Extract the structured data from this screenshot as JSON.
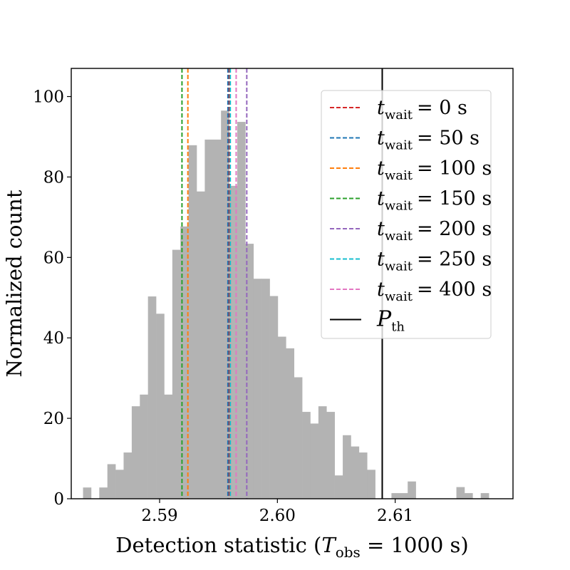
{
  "chart_data": {
    "type": "bar",
    "subtype": "histogram",
    "xlabel": "Detection statistic (T_obs = 1000 s)",
    "ylabel": "Normalized count",
    "xlim": [
      2.5825,
      2.62
    ],
    "ylim": [
      0,
      107
    ],
    "xticks": [
      2.59,
      2.6,
      2.61
    ],
    "xtick_labels": [
      "2.59",
      "2.60",
      "2.61"
    ],
    "yticks": [
      0,
      20,
      40,
      60,
      80,
      100
    ],
    "ytick_labels": [
      "0",
      "20",
      "40",
      "60",
      "80",
      "100"
    ],
    "grid": false,
    "legend_placement": "upper right",
    "histogram": {
      "bin_start": 2.5835,
      "bin_width": 0.000689,
      "counts": [
        2.8,
        0,
        2.8,
        8.6,
        7.2,
        11.5,
        23,
        25.9,
        50.3,
        46,
        25.9,
        61.9,
        67.7,
        87.9,
        76.4,
        89.3,
        89.3,
        96.5,
        77.8,
        93.7,
        63.4,
        54.7,
        54.7,
        50.4,
        40.3,
        37.4,
        30.2,
        21.6,
        18.7,
        23,
        21.6,
        5.8,
        15.8,
        13,
        11.5,
        7.2,
        0,
        0,
        1.4,
        1.4,
        4.3,
        0,
        0,
        0,
        0,
        0,
        2.9,
        1.4,
        0,
        1.4
      ],
      "color": "#b3b3b3"
    },
    "vlines": [
      {
        "label_main": "t",
        "label_sub": "wait",
        "label_value": "= 0 s",
        "x": 2.5959,
        "color": "#d62728",
        "style": "dashed"
      },
      {
        "label_main": "t",
        "label_sub": "wait",
        "label_value": "= 50 s",
        "x": 2.5958,
        "color": "#1f77b4",
        "style": "dashed"
      },
      {
        "label_main": "t",
        "label_sub": "wait",
        "label_value": "= 100 s",
        "x": 2.5924,
        "color": "#ff7f0e",
        "style": "dashed"
      },
      {
        "label_main": "t",
        "label_sub": "wait",
        "label_value": "= 150 s",
        "x": 2.5919,
        "color": "#2ca02c",
        "style": "dashed"
      },
      {
        "label_main": "t",
        "label_sub": "wait",
        "label_value": "= 200 s",
        "x": 2.5974,
        "color": "#9467bd",
        "style": "dashed"
      },
      {
        "label_main": "t",
        "label_sub": "wait",
        "label_value": "= 250 s",
        "x": 2.596,
        "color": "#17becf",
        "style": "dashed"
      },
      {
        "label_main": "t",
        "label_sub": "wait",
        "label_value": "= 400 s",
        "x": 2.5965,
        "color": "#e377c2",
        "style": "dashed"
      },
      {
        "label_main": "P",
        "label_sub": "th",
        "label_value": "",
        "x": 2.6089,
        "color": "#000000",
        "style": "solid"
      }
    ]
  }
}
